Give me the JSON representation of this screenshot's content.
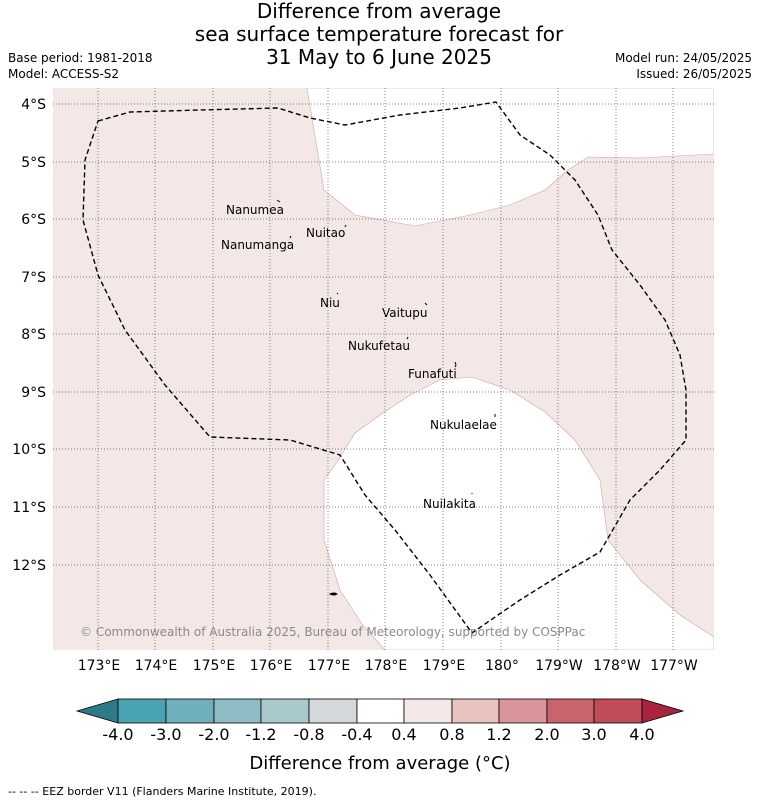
{
  "title": {
    "line1": "Difference from average",
    "line2": "sea surface temperature forecast for",
    "line3": "31 May to 6 June 2025"
  },
  "meta": {
    "base_period": "Base period: 1981-2018",
    "model": "Model: ACCESS-S2",
    "model_run": "Model run: 24/05/2025",
    "issued": "Issued: 26/05/2025"
  },
  "map": {
    "lat_labels": [
      "4°S",
      "5°S",
      "6°S",
      "7°S",
      "8°S",
      "9°S",
      "10°S",
      "11°S",
      "12°S"
    ],
    "lon_labels": [
      "173°E",
      "174°E",
      "175°E",
      "176°E",
      "177°E",
      "178°E",
      "179°E",
      "180°",
      "179°W",
      "178°W",
      "177°W"
    ],
    "islands": [
      "Nanumea",
      "Nuitao",
      "Nanumanga",
      "Niu",
      "Vaitupu",
      "Nukufetau",
      "Funafuti",
      "Nukulaelae",
      "Nuilakita"
    ],
    "copyright": "© Commonwealth of Australia 2025, Bureau of Meteorology, supported by COSPPac",
    "colors": {
      "warm_anomaly": "#f4e8e7",
      "neutral": "#ffffff",
      "eez_line": "#000000"
    }
  },
  "colorbar": {
    "tick_labels": [
      "-4.0",
      "-3.0",
      "-2.0",
      "-1.2",
      "-0.8",
      "-0.4",
      "0.4",
      "0.8",
      "1.2",
      "2.0",
      "3.0",
      "4.0"
    ],
    "colors": [
      "#2e7b87",
      "#4aa3b3",
      "#6fb0bc",
      "#8dbcc5",
      "#a9c9cd",
      "#d3d8da",
      "#ffffff",
      "#f4e8e7",
      "#e8c3c0",
      "#d9959a",
      "#c8646e",
      "#c14b59",
      "#a8233d"
    ],
    "label": "Difference from average (°C)"
  },
  "footer": "--  --  -- EEZ border V11 (Flanders Marine Institute, 2019)."
}
